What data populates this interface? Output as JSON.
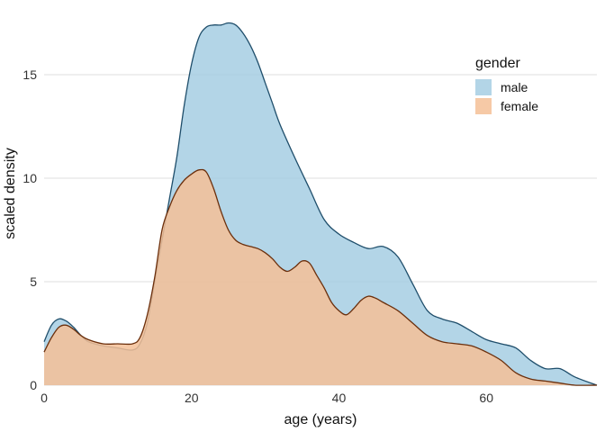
{
  "chart_data": {
    "type": "area",
    "title": "",
    "xlabel": "age (years)",
    "ylabel": "scaled density",
    "xlim": [
      0,
      75
    ],
    "ylim": [
      0,
      18
    ],
    "x_ticks": [
      0,
      20,
      40,
      60
    ],
    "y_ticks": [
      0,
      5,
      10,
      15
    ],
    "grid": "horizontal",
    "legend": {
      "title": "gender",
      "placement": "top-right"
    },
    "series": [
      {
        "name": "male",
        "color": "#a6cee3",
        "line_color": "#1f4e6b",
        "x": [
          0,
          1,
          2,
          3,
          4,
          5,
          6,
          8,
          10,
          12,
          13,
          14,
          15,
          16,
          17,
          18,
          19,
          20,
          21,
          22,
          23,
          24,
          25,
          26,
          27,
          28,
          29,
          30,
          31,
          32,
          34,
          36,
          38,
          40,
          42,
          44,
          46,
          48,
          50,
          52,
          54,
          56,
          58,
          60,
          62,
          64,
          66,
          68,
          70,
          72,
          75
        ],
        "y": [
          2.1,
          2.9,
          3.2,
          3.1,
          2.8,
          2.4,
          2.1,
          1.9,
          1.8,
          1.7,
          2.0,
          3.0,
          5.0,
          7.0,
          9.0,
          11.0,
          13.5,
          15.5,
          16.8,
          17.3,
          17.4,
          17.4,
          17.5,
          17.4,
          17.0,
          16.4,
          15.6,
          14.6,
          13.6,
          12.6,
          11.0,
          9.5,
          8.0,
          7.3,
          6.9,
          6.6,
          6.7,
          6.2,
          4.9,
          3.6,
          3.2,
          3.0,
          2.6,
          2.2,
          2.0,
          1.8,
          1.2,
          0.8,
          0.8,
          0.4,
          0.0
        ]
      },
      {
        "name": "female",
        "color": "#f4bf96",
        "line_color": "#6b2f0c",
        "x": [
          0,
          1,
          2,
          3,
          4,
          5,
          6,
          8,
          10,
          12,
          13,
          14,
          15,
          16,
          17,
          18,
          19,
          20,
          21,
          22,
          23,
          24,
          25,
          26,
          27,
          28,
          29,
          30,
          31,
          32,
          33,
          34,
          35,
          36,
          37,
          38,
          39,
          40,
          41,
          42,
          43,
          44,
          45,
          46,
          48,
          50,
          52,
          54,
          56,
          58,
          60,
          62,
          64,
          66,
          68,
          70,
          72,
          75
        ],
        "y": [
          1.6,
          2.3,
          2.8,
          2.9,
          2.7,
          2.4,
          2.2,
          2.0,
          2.0,
          2.0,
          2.3,
          3.4,
          5.2,
          7.5,
          8.6,
          9.4,
          9.9,
          10.2,
          10.4,
          10.3,
          9.5,
          8.4,
          7.5,
          7.0,
          6.8,
          6.7,
          6.6,
          6.4,
          6.1,
          5.7,
          5.5,
          5.7,
          6.0,
          5.9,
          5.3,
          4.7,
          4.0,
          3.6,
          3.4,
          3.7,
          4.1,
          4.3,
          4.2,
          4.0,
          3.6,
          3.0,
          2.4,
          2.1,
          2.0,
          1.9,
          1.6,
          1.2,
          0.6,
          0.3,
          0.2,
          0.1,
          0.0,
          0.0
        ]
      }
    ]
  }
}
